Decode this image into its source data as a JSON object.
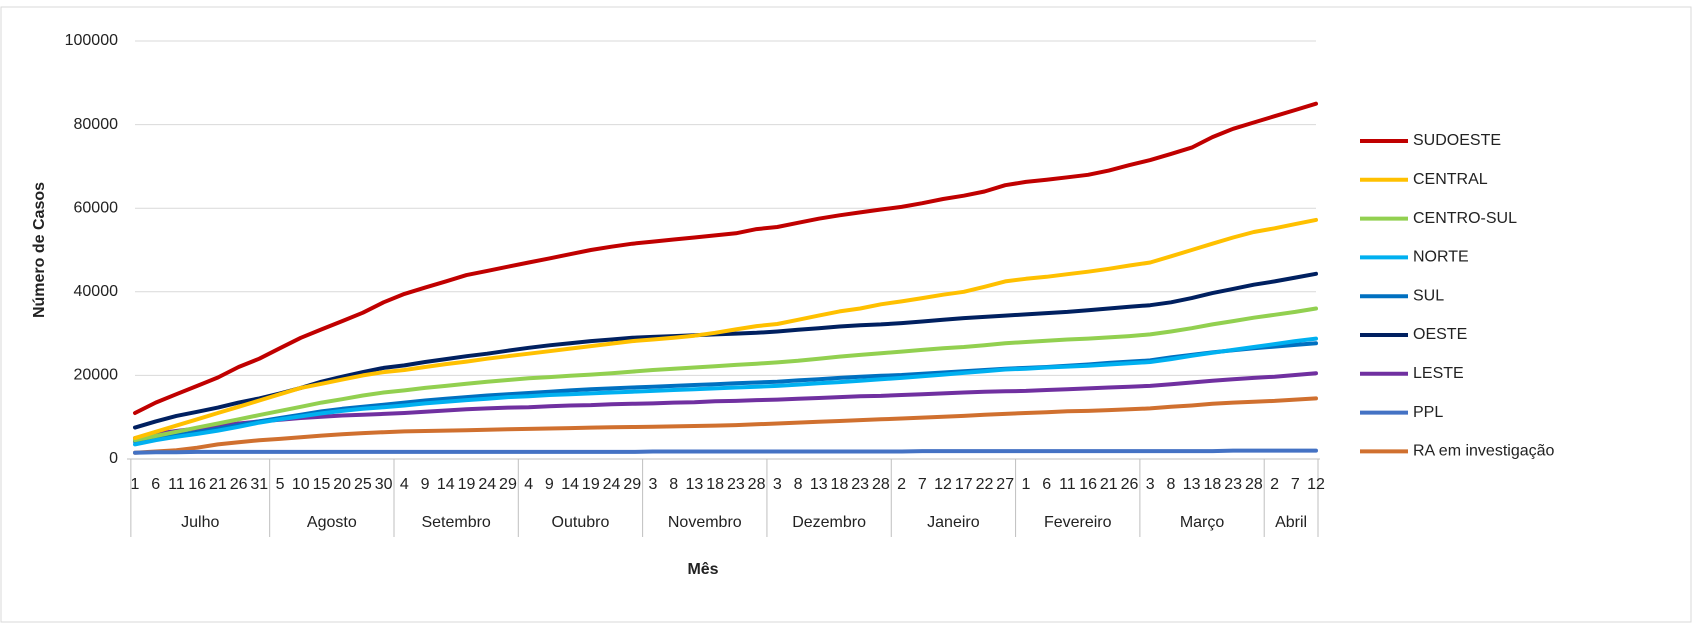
{
  "chart_data": {
    "type": "line",
    "y_label": "Número de Casos",
    "x_label": "Mês",
    "ylim": [
      0,
      100000
    ],
    "yticks": [
      0,
      20000,
      40000,
      60000,
      80000,
      100000
    ],
    "grid": true,
    "legend": "right",
    "category_groups": [
      {
        "label": "Julho",
        "categories": [
          "1",
          "6",
          "11",
          "16",
          "21",
          "26",
          "31"
        ]
      },
      {
        "label": "Agosto",
        "categories": [
          "5",
          "10",
          "15",
          "20",
          "25",
          "30"
        ]
      },
      {
        "label": "Setembro",
        "categories": [
          "4",
          "9",
          "14",
          "19",
          "24",
          "29"
        ]
      },
      {
        "label": "Outubro",
        "categories": [
          "4",
          "9",
          "14",
          "19",
          "24",
          "29"
        ]
      },
      {
        "label": "Novembro",
        "categories": [
          "3",
          "8",
          "13",
          "18",
          "23",
          "28"
        ]
      },
      {
        "label": "Dezembro",
        "categories": [
          "3",
          "8",
          "13",
          "18",
          "23",
          "28"
        ]
      },
      {
        "label": "Janeiro",
        "categories": [
          "2",
          "7",
          "12",
          "17",
          "22",
          "27"
        ]
      },
      {
        "label": "Fevereiro",
        "categories": [
          "1",
          "6",
          "11",
          "16",
          "21",
          "26"
        ]
      },
      {
        "label": "Março",
        "categories": [
          "3",
          "8",
          "13",
          "18",
          "23",
          "28"
        ]
      },
      {
        "label": "Abril",
        "categories": [
          "2",
          "7",
          "12"
        ]
      }
    ],
    "series": [
      {
        "name": "SUDOESTE",
        "color": "#c00000",
        "values": [
          11000,
          13500,
          15500,
          17500,
          19500,
          22000,
          24000,
          26500,
          29000,
          31000,
          33000,
          35000,
          37500,
          39500,
          41000,
          42500,
          44000,
          45000,
          46000,
          47000,
          48000,
          49000,
          50000,
          50800,
          51500,
          52000,
          52500,
          53000,
          53500,
          54000,
          55000,
          55500,
          56500,
          57500,
          58300,
          59000,
          59700,
          60300,
          61200,
          62200,
          63000,
          64000,
          65500,
          66300,
          66800,
          67400,
          68000,
          69000,
          70300,
          71500,
          73000,
          74500,
          77000,
          79000,
          80500,
          82000,
          83500,
          85000
        ]
      },
      {
        "name": "CENTRAL",
        "color": "#ffc000",
        "values": [
          5000,
          6500,
          8000,
          9500,
          11000,
          12500,
          14000,
          15500,
          17000,
          18000,
          19000,
          20000,
          20800,
          21300,
          22000,
          22700,
          23300,
          24000,
          24600,
          25200,
          25800,
          26400,
          27000,
          27600,
          28200,
          28600,
          29000,
          29500,
          30200,
          31000,
          31800,
          32300,
          33300,
          34300,
          35300,
          36000,
          37000,
          37700,
          38500,
          39300,
          40000,
          41200,
          42500,
          43100,
          43600,
          44200,
          44800,
          45500,
          46300,
          47000,
          48500,
          50000,
          51500,
          53000,
          54300,
          55200,
          56200,
          57200
        ]
      },
      {
        "name": "CENTRO-SUL",
        "color": "#92d050",
        "values": [
          4500,
          5500,
          6500,
          7500,
          8500,
          9500,
          10500,
          11500,
          12500,
          13500,
          14300,
          15200,
          15900,
          16400,
          17000,
          17500,
          18000,
          18500,
          18900,
          19300,
          19600,
          19900,
          20200,
          20500,
          20900,
          21300,
          21600,
          21900,
          22200,
          22500,
          22800,
          23100,
          23500,
          24000,
          24500,
          24900,
          25300,
          25700,
          26100,
          26500,
          26800,
          27200,
          27700,
          28000,
          28300,
          28600,
          28800,
          29100,
          29400,
          29800,
          30500,
          31300,
          32200,
          33000,
          33800,
          34500,
          35200,
          36000
        ]
      },
      {
        "name": "NORTE",
        "color": "#00b0f0",
        "values": [
          3500,
          4500,
          5300,
          6000,
          6800,
          7700,
          8700,
          9500,
          10200,
          10900,
          11500,
          12000,
          12400,
          12800,
          13300,
          13700,
          14100,
          14400,
          14800,
          15000,
          15300,
          15500,
          15700,
          15900,
          16100,
          16300,
          16500,
          16700,
          16900,
          17100,
          17300,
          17500,
          17800,
          18100,
          18400,
          18700,
          19100,
          19400,
          19800,
          20200,
          20600,
          21000,
          21400,
          21600,
          21900,
          22100,
          22300,
          22600,
          22900,
          23200,
          23900,
          24700,
          25400,
          26100,
          26800,
          27500,
          28200,
          28800
        ]
      },
      {
        "name": "SUL",
        "color": "#0070c0",
        "values": [
          4200,
          5000,
          5700,
          6400,
          7200,
          8100,
          9000,
          9800,
          10600,
          11400,
          12000,
          12500,
          13000,
          13500,
          14000,
          14400,
          14800,
          15200,
          15500,
          15800,
          16100,
          16400,
          16700,
          16900,
          17100,
          17300,
          17500,
          17700,
          17900,
          18100,
          18300,
          18500,
          18800,
          19100,
          19400,
          19700,
          19900,
          20100,
          20400,
          20700,
          21000,
          21300,
          21600,
          21800,
          22000,
          22300,
          22600,
          23000,
          23300,
          23600,
          24300,
          24900,
          25500,
          26000,
          26500,
          26900,
          27300,
          27700
        ]
      },
      {
        "name": "OESTE",
        "color": "#002060",
        "values": [
          7500,
          9000,
          10300,
          11300,
          12300,
          13500,
          14500,
          15700,
          17000,
          18500,
          19700,
          20800,
          21800,
          22400,
          23200,
          23900,
          24600,
          25200,
          25900,
          26600,
          27200,
          27700,
          28200,
          28600,
          29000,
          29200,
          29400,
          29600,
          29800,
          30000,
          30200,
          30500,
          30900,
          31300,
          31700,
          32000,
          32200,
          32500,
          32900,
          33300,
          33700,
          34000,
          34300,
          34600,
          34900,
          35200,
          35600,
          36000,
          36400,
          36800,
          37500,
          38500,
          39700,
          40700,
          41700,
          42500,
          43400,
          44300
        ]
      },
      {
        "name": "LESTE",
        "color": "#7030a0",
        "values": [
          5000,
          6000,
          6700,
          7300,
          7900,
          8500,
          9000,
          9400,
          9800,
          10100,
          10400,
          10600,
          10800,
          11000,
          11300,
          11600,
          11900,
          12100,
          12300,
          12400,
          12600,
          12800,
          12900,
          13100,
          13200,
          13300,
          13500,
          13600,
          13800,
          13900,
          14100,
          14200,
          14400,
          14600,
          14800,
          15000,
          15100,
          15300,
          15500,
          15700,
          15900,
          16100,
          16200,
          16300,
          16500,
          16700,
          16900,
          17100,
          17300,
          17500,
          17900,
          18300,
          18700,
          19100,
          19400,
          19700,
          20100,
          20500
        ]
      },
      {
        "name": "PPL",
        "color": "#4472c4",
        "values": [
          1500,
          1600,
          1600,
          1700,
          1700,
          1700,
          1700,
          1700,
          1700,
          1700,
          1700,
          1700,
          1700,
          1700,
          1700,
          1700,
          1700,
          1700,
          1700,
          1700,
          1700,
          1700,
          1700,
          1700,
          1700,
          1800,
          1800,
          1800,
          1800,
          1800,
          1800,
          1800,
          1800,
          1800,
          1800,
          1800,
          1800,
          1800,
          1900,
          1900,
          1900,
          1900,
          1900,
          1900,
          1900,
          1900,
          1900,
          1900,
          1900,
          1900,
          1900,
          1900,
          1900,
          2000,
          2000,
          2000,
          2000,
          2000
        ]
      },
      {
        "name": "RA em investigação",
        "color": "#d0702f",
        "values": [
          1500,
          1800,
          2100,
          2700,
          3500,
          4000,
          4500,
          4800,
          5200,
          5600,
          5900,
          6200,
          6400,
          6600,
          6700,
          6800,
          6900,
          7000,
          7100,
          7200,
          7300,
          7400,
          7500,
          7600,
          7650,
          7700,
          7800,
          7900,
          8000,
          8100,
          8300,
          8500,
          8700,
          8900,
          9100,
          9300,
          9500,
          9700,
          9900,
          10100,
          10300,
          10600,
          10800,
          11000,
          11200,
          11400,
          11500,
          11700,
          11900,
          12100,
          12500,
          12800,
          13200,
          13500,
          13700,
          13900,
          14200,
          14500
        ]
      }
    ]
  }
}
